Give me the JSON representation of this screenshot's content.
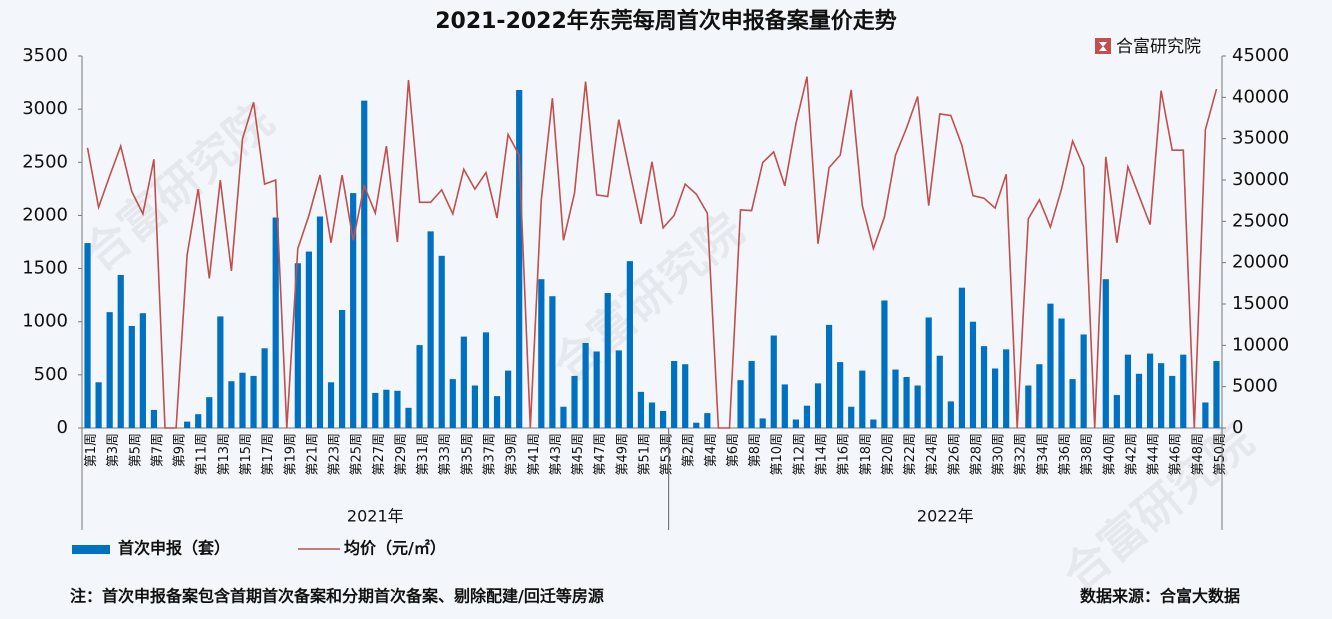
{
  "chart_data": {
    "type": "bar_line",
    "title": "2021-2022年东莞每周首次申报备案量价走势",
    "brand": "合富研究院",
    "watermark": "合富研究院",
    "note": "注：首次申报备案包含首期首次备案和分期首次备案、剔除配建/回迁等房源",
    "source": "数据来源：合富大数据",
    "category_groups": [
      {
        "name": "2021年",
        "categories": [
          "第1周",
          null,
          "第3周",
          null,
          "第5周",
          null,
          "第7周",
          null,
          "第9周",
          null,
          "第11周",
          null,
          "第13周",
          null,
          "第15周",
          null,
          "第17周",
          null,
          "第19周",
          null,
          "第21周",
          null,
          "第23周",
          null,
          "第25周",
          null,
          "第27周",
          null,
          "第29周",
          null,
          "第31周",
          null,
          "第33周",
          null,
          "第35周",
          null,
          "第37周",
          null,
          "第39周",
          null,
          "第41周",
          null,
          "第43周",
          null,
          "第45周",
          null,
          "第47周",
          null,
          "第49周",
          null,
          "第51周",
          null,
          "第53周"
        ]
      },
      {
        "name": "2022年",
        "categories": [
          null,
          "第2周",
          null,
          "第4周",
          null,
          "第6周",
          null,
          "第8周",
          null,
          "第10周",
          null,
          "第12周",
          null,
          "第14周",
          null,
          "第16周",
          null,
          "第18周",
          null,
          "第20周",
          null,
          "第22周",
          null,
          "第24周",
          null,
          "第26周",
          null,
          "第28周",
          null,
          "第30周",
          null,
          "第32周",
          null,
          "第34周",
          null,
          "第36周",
          null,
          "第38周",
          null,
          "第40周",
          null,
          "第42周",
          null,
          "第44周",
          null,
          "第46周",
          null,
          "第48周",
          null,
          "第50周"
        ]
      }
    ],
    "series": [
      {
        "name": "首次申报（套）",
        "type": "bar",
        "color": "#0070c0",
        "values": [
          1740,
          430,
          1090,
          1440,
          960,
          1080,
          170,
          0,
          0,
          60,
          130,
          290,
          1050,
          440,
          520,
          490,
          750,
          1980,
          0,
          1550,
          1660,
          1990,
          430,
          1110,
          2210,
          3080,
          330,
          360,
          350,
          190,
          780,
          1850,
          1620,
          460,
          860,
          400,
          900,
          300,
          540,
          3180,
          0,
          1400,
          1240,
          200,
          490,
          800,
          720,
          1270,
          730,
          1570,
          340,
          240,
          160,
          630,
          600,
          50,
          140,
          0,
          0,
          450,
          630,
          90,
          870,
          410,
          80,
          210,
          420,
          970,
          620,
          200,
          540,
          80,
          1200,
          550,
          480,
          400,
          1040,
          680,
          250,
          1320,
          1000,
          770,
          560,
          740,
          0,
          400,
          600,
          1170,
          1030,
          460,
          880,
          0,
          1400,
          310,
          690,
          510,
          700,
          610,
          490,
          690,
          0,
          240,
          630
        ]
      },
      {
        "name": "均价（元/㎡）",
        "type": "line",
        "axis": "y2",
        "color": "#c0504d",
        "values": [
          33900,
          26700,
          30500,
          34100,
          28600,
          25900,
          32500,
          0,
          0,
          20900,
          28900,
          18100,
          30000,
          19000,
          35000,
          39400,
          29500,
          30000,
          0,
          21700,
          25700,
          30600,
          22400,
          30600,
          22700,
          29300,
          26000,
          34100,
          22500,
          42100,
          27300,
          27300,
          28800,
          25900,
          31300,
          28900,
          30900,
          25400,
          35500,
          33000,
          0,
          27600,
          39900,
          22700,
          28400,
          41900,
          28200,
          28000,
          37300,
          30900,
          24700,
          32200,
          24200,
          25700,
          29500,
          28300,
          26000,
          0,
          0,
          26400,
          26300,
          32100,
          33400,
          29300,
          36800,
          42500,
          22300,
          31500,
          33000,
          40900,
          26900,
          21700,
          25500,
          33000,
          36300,
          40100,
          26900,
          38000,
          37800,
          34200,
          28100,
          27800,
          26600,
          30700,
          0,
          25300,
          27600,
          24300,
          28900,
          34700,
          31600,
          0,
          32800,
          22400,
          31600,
          28100,
          24600,
          40800,
          33600,
          33600,
          0,
          36100,
          41000
        ]
      }
    ],
    "ylim": [
      0,
      3500
    ],
    "yticks": [
      0,
      500,
      1000,
      1500,
      2000,
      2500,
      3000,
      3500
    ],
    "y2lim": [
      0,
      45000
    ],
    "y2ticks": [
      0,
      5000,
      10000,
      15000,
      20000,
      25000,
      30000,
      35000,
      40000,
      45000
    ],
    "grid": false,
    "legend": "bottom"
  }
}
